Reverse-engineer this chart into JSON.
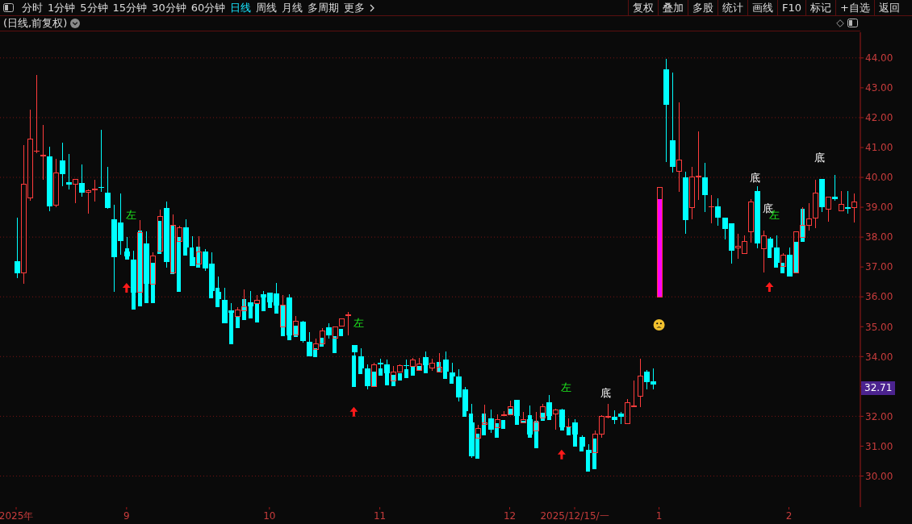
{
  "chart_data": {
    "type": "candlestick",
    "title": "(日线,前复权)",
    "categories": [
      "2025年",
      null,
      null,
      null,
      null,
      null,
      null,
      null,
      null,
      null,
      null,
      null,
      null,
      null,
      null,
      null,
      null,
      "9",
      null,
      null,
      null,
      null,
      null,
      null,
      null,
      null,
      null,
      null,
      null,
      null,
      null,
      null,
      null,
      null,
      null,
      null,
      null,
      null,
      null,
      "10",
      null,
      null,
      null,
      null,
      null,
      null,
      null,
      null,
      null,
      null,
      null,
      null,
      null,
      null,
      null,
      null,
      "11",
      null,
      null,
      null,
      null,
      null,
      null,
      null,
      null,
      null,
      null,
      null,
      null,
      null,
      null,
      null,
      null,
      null,
      null,
      null,
      "12",
      null,
      null,
      null,
      null,
      null,
      null,
      null,
      null,
      null,
      "2025/12/15/一",
      null,
      null,
      null,
      null,
      null,
      null,
      null,
      null,
      null,
      null,
      null,
      null,
      "1",
      null,
      null,
      null,
      null,
      null,
      null,
      null,
      null,
      null,
      null,
      null,
      null,
      null,
      null,
      null,
      null,
      null,
      null,
      null,
      "2",
      null,
      null,
      null,
      null,
      null,
      null,
      null,
      null,
      null,
      null
    ],
    "ohlc": [
      [
        37.2,
        38.66,
        36.63,
        36.79
      ],
      [
        36.78,
        41.09,
        36.45,
        39.78
      ],
      [
        39.29,
        42.28,
        39.23,
        41.3
      ],
      [
        40.86,
        43.44,
        40.8,
        40.9
      ],
      [
        40.69,
        41.76,
        39.91,
        40.76
      ],
      [
        40.71,
        41.04,
        38.88,
        39.04
      ],
      [
        39.06,
        40.63,
        38.99,
        40.17
      ],
      [
        40.58,
        41.17,
        39.71,
        40.1
      ],
      [
        39.85,
        40.79,
        39.6,
        39.77
      ],
      [
        39.77,
        39.95,
        39.13,
        39.95
      ],
      [
        39.82,
        40.44,
        39.34,
        39.5
      ],
      [
        39.48,
        39.6,
        38.78,
        39.57
      ],
      [
        39.56,
        39.93,
        39.2,
        39.61
      ],
      [
        39.68,
        41.6,
        39.52,
        39.64
      ],
      [
        39.5,
        40.36,
        38.95,
        38.98
      ],
      [
        38.59,
        39.09,
        36.17,
        37.33
      ],
      [
        38.49,
        39.47,
        37.41,
        37.87
      ],
      [
        37.52,
        38.01,
        37.36,
        37.36
      ],
      [
        37.25,
        37.55,
        36.14,
        36.14
      ],
      [
        36.14,
        38.57,
        36.14,
        38.16
      ],
      [
        37.79,
        38.18,
        36.44,
        36.44
      ],
      [
        36.42,
        37.49,
        36.42,
        37.39
      ],
      [
        37.53,
        38.93,
        37.53,
        38.7
      ],
      [
        38.98,
        39.2,
        36.99,
        37.17
      ],
      [
        36.78,
        38.77,
        36.78,
        38.41
      ],
      [
        37.85,
        38.39,
        37.85,
        38.32
      ],
      [
        38.33,
        38.6,
        37.66,
        37.66
      ],
      [
        37.33,
        38.04,
        37.04,
        37.04
      ],
      [
        37.08,
        38.04,
        37.08,
        37.53
      ],
      [
        37.52,
        37.6,
        36.87,
        36.96
      ],
      [
        37.12,
        37.5,
        36.2,
        36.2
      ],
      [
        36.17,
        36.68,
        35.93,
        35.93
      ],
      [
        35.9,
        36.31,
        35.12,
        35.12
      ],
      [
        35.55,
        35.79,
        35.46,
        35.46
      ],
      [
        35.34,
        35.66,
        35.34,
        35.57
      ],
      [
        35.53,
        36.25,
        35.53,
        35.68
      ],
      [
        35.82,
        36.2,
        35.68,
        35.68
      ],
      [
        35.76,
        36.06,
        35.76,
        35.89
      ],
      [
        36.08,
        36.2,
        35.98,
        35.98
      ],
      [
        36.14,
        36.14,
        35.82,
        35.82
      ],
      [
        36.12,
        36.47,
        35.71,
        35.71
      ],
      [
        34.98,
        36.06,
        34.98,
        35.73
      ],
      [
        35.98,
        36.09,
        34.71,
        34.71
      ],
      [
        34.7,
        35.36,
        34.7,
        35.19
      ],
      [
        35.17,
        35.19,
        34.47,
        34.53
      ],
      [
        34.5,
        34.82,
        34.0,
        34.02
      ],
      [
        34.22,
        34.6,
        34.22,
        34.44
      ],
      [
        34.42,
        34.95,
        34.42,
        34.87
      ],
      [
        34.98,
        35.12,
        34.6,
        34.7
      ],
      [
        34.6,
        35.0,
        34.6,
        35.0
      ],
      [
        35.0,
        35.27,
        35.0,
        35.27
      ],
      [
        35.35,
        35.5,
        34.71,
        35.42
      ],
      [
        34.39,
        34.39,
        34.04,
        34.15
      ],
      [
        34.0,
        34.28,
        33.61,
        33.61
      ],
      [
        33.6,
        33.75,
        32.91,
        33.0
      ],
      [
        32.98,
        33.79,
        32.98,
        33.73
      ],
      [
        33.79,
        33.93,
        33.6,
        33.75
      ],
      [
        33.74,
        33.89,
        33.45,
        33.45
      ],
      [
        33.18,
        33.68,
        33.18,
        33.5
      ],
      [
        33.46,
        33.74,
        33.46,
        33.7
      ],
      [
        33.71,
        33.9,
        33.57,
        33.69
      ],
      [
        33.65,
        33.95,
        33.65,
        33.9
      ],
      [
        33.52,
        33.95,
        33.52,
        33.76
      ],
      [
        33.98,
        34.17,
        33.7,
        33.7
      ],
      [
        33.6,
        33.92,
        33.52,
        33.78
      ],
      [
        33.48,
        34.12,
        33.48,
        33.66
      ],
      [
        33.9,
        34.17,
        33.5,
        33.5
      ],
      [
        33.46,
        33.78,
        33.34,
        33.34
      ],
      [
        33.33,
        33.58,
        32.5,
        32.64
      ],
      [
        32.9,
        32.98,
        32.17,
        32.17
      ],
      [
        31.79,
        32.42,
        30.62,
        30.66
      ],
      [
        31.26,
        31.71,
        31.26,
        31.61
      ],
      [
        31.72,
        32.39,
        31.72,
        31.79
      ],
      [
        31.93,
        32.23,
        31.45,
        31.54
      ],
      [
        31.61,
        32.06,
        31.61,
        31.9
      ],
      [
        32.02,
        32.17,
        32.02,
        32.06
      ],
      [
        32.04,
        32.51,
        32.04,
        32.33
      ],
      [
        32.55,
        32.55,
        32.01,
        32.01
      ],
      [
        31.77,
        32.15,
        31.77,
        31.9
      ],
      [
        31.9,
        32.36,
        31.4,
        31.4
      ],
      [
        31.5,
        32.15,
        31.5,
        31.82
      ],
      [
        31.93,
        32.42,
        31.93,
        32.33
      ],
      [
        32.47,
        32.71,
        32.01,
        32.01
      ],
      [
        32.07,
        32.25,
        31.56,
        32.23
      ],
      [
        32.23,
        32.25,
        31.63,
        31.63
      ],
      [
        31.63,
        31.93,
        31.63,
        31.66
      ],
      [
        31.79,
        31.9,
        31.39,
        31.39
      ],
      [
        31.31,
        31.36,
        30.98,
        30.98
      ],
      [
        30.88,
        31.07,
        30.77,
        30.77
      ],
      [
        30.78,
        31.52,
        30.78,
        31.42
      ],
      [
        31.4,
        32.04,
        31.29,
        32.0
      ],
      [
        31.96,
        32.42,
        31.94,
        32.01
      ],
      [
        31.97,
        32.2,
        31.74,
        31.88
      ],
      [
        32.09,
        32.15,
        31.74,
        31.98
      ],
      [
        31.75,
        32.58,
        31.75,
        32.47
      ],
      [
        32.32,
        33.21,
        32.32,
        32.36
      ],
      [
        32.67,
        33.93,
        32.32,
        33.36
      ],
      [
        33.5,
        33.55,
        32.91,
        33.15
      ],
      [
        33.18,
        33.6,
        32.91,
        33.07
      ],
      [
        35.99,
        39.68,
        35.99,
        39.68
      ],
      [
        43.63,
        43.97,
        40.51,
        42.44
      ],
      [
        41.25,
        43.5,
        40.15,
        40.35
      ],
      [
        40.18,
        42.52,
        39.51,
        40.6
      ],
      [
        40.01,
        40.2,
        38.1,
        38.56
      ],
      [
        38.97,
        40.34,
        38.59,
        40.03
      ],
      [
        39.99,
        41.55,
        39.24,
        40.06
      ],
      [
        40.01,
        40.5,
        38.83,
        39.42
      ],
      [
        39.0,
        39.42,
        38.45,
        39.04
      ],
      [
        39.04,
        39.31,
        38.37,
        38.64
      ],
      [
        38.66,
        38.66,
        37.92,
        38.27
      ],
      [
        38.45,
        38.45,
        37.11,
        37.54
      ],
      [
        37.62,
        38.1,
        37.27,
        37.71
      ],
      [
        37.43,
        38.06,
        37.43,
        37.88
      ],
      [
        38.16,
        39.27,
        37.81,
        39.2
      ],
      [
        39.53,
        39.71,
        37.62,
        37.78
      ],
      [
        37.59,
        38.23,
        36.81,
        38.06
      ],
      [
        37.96,
        38.01,
        37.64,
        37.64
      ],
      [
        37.66,
        38.06,
        37.13,
        37.13
      ],
      [
        37.0,
        37.47,
        37.0,
        37.41
      ],
      [
        37.41,
        37.66,
        36.67,
        36.69
      ],
      [
        36.78,
        38.2,
        36.78,
        38.2
      ],
      [
        37.97,
        39.01,
        37.97,
        38.41
      ],
      [
        38.37,
        39.14,
        38.21,
        38.63
      ],
      [
        38.62,
        39.93,
        38.29,
        39.5
      ],
      [
        39.96,
        39.96,
        38.83,
        38.99
      ],
      [
        38.91,
        39.36,
        38.51,
        39.36
      ],
      [
        39.34,
        40.09,
        39.21,
        39.27
      ],
      [
        38.87,
        39.55,
        38.87,
        39.11
      ],
      [
        39.01,
        39.55,
        38.78,
        38.96
      ],
      [
        38.97,
        39.47,
        38.48,
        39.19
      ]
    ],
    "colors": [
      "#00ffff",
      "#ff3c3c",
      "#ff3c3c",
      "#ff3c3c",
      "#ff3c3c",
      "#00ffff",
      "#ff3c3c",
      "#00ffff",
      "#00ffff",
      "#ff3c3c",
      "#00ffff",
      "#ff3c3c",
      "#ff3c3c",
      "#00ffff",
      "#00ffff",
      "#00ffff",
      "#00ffff",
      "#00ffff",
      "#00ffff",
      "#ff3c3c",
      "#00ffff",
      "#ff3c3c",
      "#ff3c3c",
      "#00ffff",
      "#ff3c3c",
      "#ff3c3c",
      "#00ffff",
      "#00ffff",
      "#ff3c3c",
      "#00ffff",
      "#00ffff",
      "#00ffff",
      "#00ffff",
      "#00ffff",
      "#ff3c3c",
      "#ff3c3c",
      "#00ffff",
      "#ff3c3c",
      "#00ffff",
      "#00ffff",
      "#00ffff",
      "#ff3c3c",
      "#00ffff",
      "#ff3c3c",
      "#00ffff",
      "#00ffff",
      "#ff3c3c",
      "#ff3c3c",
      "#00ffff",
      "#ff3c3c",
      "#ff3c3c",
      "#ff3c3c",
      "#00ffff",
      "#00ffff",
      "#00ffff",
      "#ff3c3c",
      "#00ffff",
      "#00ffff",
      "#ff3c3c",
      "#ff3c3c",
      "#00ffff",
      "#ff3c3c",
      "#ff3c3c",
      "#00ffff",
      "#ff3c3c",
      "#ff3c3c",
      "#00ffff",
      "#00ffff",
      "#00ffff",
      "#00ffff",
      "#00ffff",
      "#ff3c3c",
      "#ff3c3c",
      "#00ffff",
      "#ff3c3c",
      "#ff3c3c",
      "#ff3c3c",
      "#00ffff",
      "#ff3c3c",
      "#00ffff",
      "#ff3c3c",
      "#ff3c3c",
      "#00ffff",
      "#ff3c3c",
      "#00ffff",
      "#ff3c3c",
      "#00ffff",
      "#00ffff",
      "#00ffff",
      "#ff3c3c",
      "#ff3c3c",
      "#ff3c3c",
      "#00ffff",
      "#00ffff",
      "#ff3c3c",
      "#ff3c3c",
      "#ff3c3c",
      "#00ffff",
      "#00ffff",
      "#ff3c3c",
      "#00ffff",
      "#00ffff",
      "#ff3c3c",
      "#00ffff",
      "#ff3c3c",
      "#ff3c3c",
      "#00ffff",
      "#ff3c3c",
      "#00ffff",
      "#00ffff",
      "#00ffff",
      "#ff3c3c",
      "#ff3c3c",
      "#ff3c3c",
      "#00ffff",
      "#ff3c3c",
      "#00ffff",
      "#00ffff",
      "#ff3c3c",
      "#00ffff",
      "#ff3c3c",
      "#ff3c3c",
      "#ff3c3c",
      "#ff3c3c",
      "#00ffff",
      "#ff3c3c",
      "#00ffff",
      "#ff3c3c",
      "#00ffff",
      "#ff3c3c"
    ],
    "value_labels": [
      null,
      null,
      null,
      null,
      null,
      null,
      null,
      null,
      null,
      null,
      null,
      null,
      null,
      null,
      null,
      null,
      null,
      "左",
      null,
      null,
      null,
      null,
      null,
      null,
      null,
      null,
      null,
      null,
      null,
      null,
      null,
      null,
      null,
      null,
      null,
      null,
      null,
      null,
      null,
      null,
      null,
      null,
      null,
      null,
      null,
      null,
      null,
      null,
      null,
      null,
      null,
      null,
      "左",
      null,
      null,
      null,
      null,
      null,
      null,
      null,
      null,
      null,
      null,
      null,
      null,
      null,
      null,
      null,
      null,
      null,
      null,
      null,
      null,
      null,
      null,
      null,
      null,
      null,
      null,
      null,
      null,
      null,
      null,
      null,
      "左",
      null,
      null,
      null,
      null,
      null,
      "底",
      null,
      null,
      null,
      null,
      null,
      null,
      null,
      null,
      null,
      null,
      null,
      null,
      null,
      null,
      null,
      null,
      null,
      null,
      null,
      null,
      null,
      null,
      "底",
      null,
      "底",
      "左",
      null,
      null,
      null,
      null,
      null,
      null,
      "底",
      null,
      null,
      null,
      null,
      null,
      null
    ],
    "ylim": [
      28.96,
      44.86
    ],
    "yticks": [
      {
        "value": 30,
        "label": "30.00"
      },
      {
        "value": 31,
        "label": "31.00"
      },
      {
        "value": 32,
        "label": "32.00"
      },
      {
        "value": 33,
        "label": null
      },
      {
        "value": 34,
        "label": "34.00"
      },
      {
        "value": 35,
        "label": "35.00"
      },
      {
        "value": 36,
        "label": "36.00"
      },
      {
        "value": 37,
        "label": "37.00"
      },
      {
        "value": 38,
        "label": "38.00"
      },
      {
        "value": 39,
        "label": "39.00"
      },
      {
        "value": 40,
        "label": "40.00"
      },
      {
        "value": 41,
        "label": "41.00"
      },
      {
        "value": 42,
        "label": "42.00"
      },
      {
        "value": 43,
        "label": "43.00"
      },
      {
        "value": 44,
        "label": "44.00"
      }
    ],
    "grid": "y",
    "series": [
      {
        "type": "bar",
        "color": "#00ffff",
        "base": [
          null,
          null,
          null,
          null,
          null,
          null,
          null,
          null,
          null,
          null,
          null,
          null,
          null,
          null,
          null,
          null,
          null,
          37.25,
          35.58,
          35.68,
          35.79,
          35.79,
          37.44,
          null,
          36.76,
          36.18,
          37.4,
          37.04,
          36.99,
          null,
          35.95,
          35.66,
          null,
          34.42,
          34.96,
          35.24,
          35.28,
          35.14,
          35.53,
          35.64,
          35.44,
          34.67,
          34.56,
          34.67,
          null,
          null,
          34.0,
          34.33,
          null,
          34.13,
          34.69,
          null,
          32.98,
          33.42,
          null,
          32.98,
          33.37,
          33.05,
          33.02,
          33.18,
          33.28,
          33.36,
          33.52,
          33.42,
          null,
          33.48,
          33.25,
          33.09,
          null,
          31.98,
          31.79,
          30.58,
          31.36,
          null,
          31.28,
          31.58,
          32.04,
          31.7,
          31.77,
          31.29,
          30.94,
          31.86,
          31.88,
          null,
          31.53,
          31.36,
          30.98,
          30.82,
          30.15,
          30.23,
          null,
          null,
          null,
          null,
          null,
          null,
          null,
          null,
          null,
          null,
          null,
          null,
          null,
          null,
          null,
          null,
          null,
          null,
          null,
          null,
          null,
          null,
          null,
          null,
          null,
          null,
          37.28,
          36.97,
          36.77,
          null,
          36.78,
          37.84,
          null,
          null,
          null,
          null,
          null,
          null,
          null,
          null
        ],
        "values": [
          null,
          null,
          null,
          null,
          null,
          null,
          null,
          null,
          null,
          null,
          null,
          null,
          null,
          null,
          null,
          null,
          null,
          0.38,
          0.56,
          2.55,
          0.65,
          1.36,
          1.11,
          null,
          1.63,
          1.83,
          0.26,
          0.62,
          0.69,
          null,
          0.25,
          0.65,
          null,
          1.04,
          0.38,
          0.69,
          0.4,
          0.62,
          0.45,
          0.18,
          0.27,
          1.06,
          0.15,
          0.37,
          null,
          null,
          0.29,
          0.3,
          null,
          0.56,
          0.24,
          null,
          1.06,
          0.19,
          null,
          0.52,
          0.23,
          0.4,
          0.37,
          0.25,
          0.29,
          0.29,
          0.16,
          0.28,
          null,
          0.34,
          0.25,
          0.25,
          null,
          0.19,
          0.3,
          0.84,
          0.73,
          null,
          0.49,
          0.3,
          0.2,
          0.31,
          0.09,
          0.75,
          0.91,
          0.26,
          0.13,
          null,
          0.1,
          0.27,
          0.41,
          0.16,
          0.62,
          1.03,
          null,
          null,
          null,
          null,
          null,
          null,
          null,
          null,
          null,
          null,
          null,
          null,
          null,
          null,
          null,
          null,
          null,
          null,
          null,
          null,
          null,
          null,
          null,
          null,
          null,
          null,
          0.36,
          0.16,
          0.36,
          null,
          1.05,
          1.11,
          null,
          null,
          null,
          null,
          null,
          null,
          null,
          null
        ]
      },
      {
        "type": "bar",
        "color": "#ff00ff",
        "base": [
          null,
          null,
          null,
          null,
          null,
          null,
          null,
          null,
          null,
          null,
          null,
          null,
          null,
          null,
          null,
          null,
          null,
          null,
          null,
          null,
          null,
          null,
          null,
          null,
          null,
          null,
          null,
          null,
          null,
          null,
          null,
          null,
          null,
          null,
          null,
          null,
          null,
          null,
          null,
          null,
          null,
          null,
          null,
          null,
          null,
          null,
          null,
          null,
          null,
          null,
          null,
          null,
          null,
          null,
          null,
          null,
          null,
          null,
          null,
          null,
          null,
          null,
          null,
          null,
          null,
          null,
          null,
          null,
          null,
          null,
          null,
          null,
          null,
          null,
          null,
          null,
          null,
          null,
          null,
          null,
          null,
          null,
          null,
          null,
          null,
          null,
          null,
          null,
          null,
          null,
          null,
          null,
          null,
          null,
          null,
          null,
          null,
          null,
          null,
          35.99,
          null,
          null,
          null,
          null,
          null,
          null,
          null,
          null,
          null,
          null,
          null,
          null,
          null,
          null,
          null,
          null,
          null,
          null,
          null,
          null,
          null,
          null,
          null,
          null,
          null,
          null,
          null,
          null,
          null,
          null
        ],
        "values": [
          null,
          null,
          null,
          null,
          null,
          null,
          null,
          null,
          null,
          null,
          null,
          null,
          null,
          null,
          null,
          null,
          null,
          null,
          null,
          null,
          null,
          null,
          null,
          null,
          null,
          null,
          null,
          null,
          null,
          null,
          null,
          null,
          null,
          null,
          null,
          null,
          null,
          null,
          null,
          null,
          null,
          null,
          null,
          null,
          null,
          null,
          null,
          null,
          null,
          null,
          null,
          null,
          null,
          null,
          null,
          null,
          null,
          null,
          null,
          null,
          null,
          null,
          null,
          null,
          null,
          null,
          null,
          null,
          null,
          null,
          null,
          null,
          null,
          null,
          null,
          null,
          null,
          null,
          null,
          null,
          null,
          null,
          null,
          null,
          null,
          null,
          null,
          null,
          null,
          null,
          null,
          null,
          null,
          null,
          null,
          null,
          null,
          null,
          null,
          3.29,
          null,
          null,
          null,
          null,
          null,
          null,
          null,
          null,
          null,
          null,
          null,
          null,
          null,
          null,
          null,
          null,
          null,
          null,
          null,
          null,
          null,
          null,
          null,
          null,
          null,
          null,
          null,
          null,
          null,
          null
        ]
      },
      {
        "type": "scatter",
        "color": "#ff1a1a",
        "marker": "triangle",
        "values": [
          null,
          null,
          null,
          null,
          null,
          null,
          null,
          null,
          null,
          null,
          null,
          null,
          null,
          null,
          null,
          null,
          null,
          36.3,
          null,
          null,
          null,
          null,
          null,
          null,
          null,
          null,
          null,
          null,
          null,
          null,
          null,
          null,
          null,
          null,
          null,
          null,
          null,
          null,
          null,
          null,
          null,
          null,
          null,
          null,
          null,
          null,
          null,
          null,
          null,
          null,
          null,
          null,
          32.15,
          null,
          null,
          null,
          null,
          null,
          null,
          null,
          null,
          null,
          null,
          null,
          null,
          null,
          null,
          null,
          null,
          null,
          null,
          null,
          null,
          null,
          null,
          null,
          null,
          null,
          null,
          null,
          null,
          null,
          null,
          null,
          30.72,
          null,
          null,
          null,
          null,
          null,
          null,
          null,
          null,
          null,
          null,
          null,
          null,
          null,
          null,
          null,
          null,
          null,
          null,
          null,
          null,
          null,
          null,
          null,
          null,
          null,
          null,
          null,
          null,
          null,
          null,
          null,
          36.33,
          null,
          null,
          null,
          null,
          null,
          null,
          null,
          null,
          null,
          null,
          null,
          null,
          null
        ]
      },
      {
        "type": "scatter",
        "color": "#f2c12e",
        "marker": "circle",
        "values": [
          null,
          null,
          null,
          null,
          null,
          null,
          null,
          null,
          null,
          null,
          null,
          null,
          null,
          null,
          null,
          null,
          null,
          null,
          null,
          null,
          null,
          null,
          null,
          null,
          null,
          null,
          null,
          null,
          null,
          null,
          null,
          null,
          null,
          null,
          null,
          null,
          null,
          null,
          null,
          null,
          null,
          null,
          null,
          null,
          null,
          null,
          null,
          null,
          null,
          null,
          null,
          null,
          null,
          null,
          null,
          null,
          null,
          null,
          null,
          null,
          null,
          null,
          null,
          null,
          null,
          null,
          null,
          null,
          null,
          null,
          null,
          null,
          null,
          null,
          null,
          null,
          null,
          null,
          null,
          null,
          null,
          null,
          null,
          null,
          null,
          null,
          null,
          null,
          null,
          null,
          null,
          null,
          null,
          null,
          null,
          null,
          null,
          null,
          null,
          35.06,
          null,
          null,
          null,
          null,
          null,
          null,
          null,
          null,
          null,
          null,
          null,
          null,
          null,
          null,
          null,
          null,
          null,
          null,
          null,
          null,
          null,
          null,
          null,
          null,
          null,
          null,
          null,
          null,
          null,
          null
        ]
      }
    ],
    "annotations": [
      "分时",
      "1分钟",
      "5分钟",
      "15分钟",
      "30分钟",
      "60分钟",
      "日线",
      "周线",
      "月线",
      "多周期",
      "更多",
      "复权",
      "叠加",
      "多股",
      "统计",
      "画线",
      "F10",
      "标记",
      "+自选",
      "返回",
      "32.71"
    ]
  }
}
